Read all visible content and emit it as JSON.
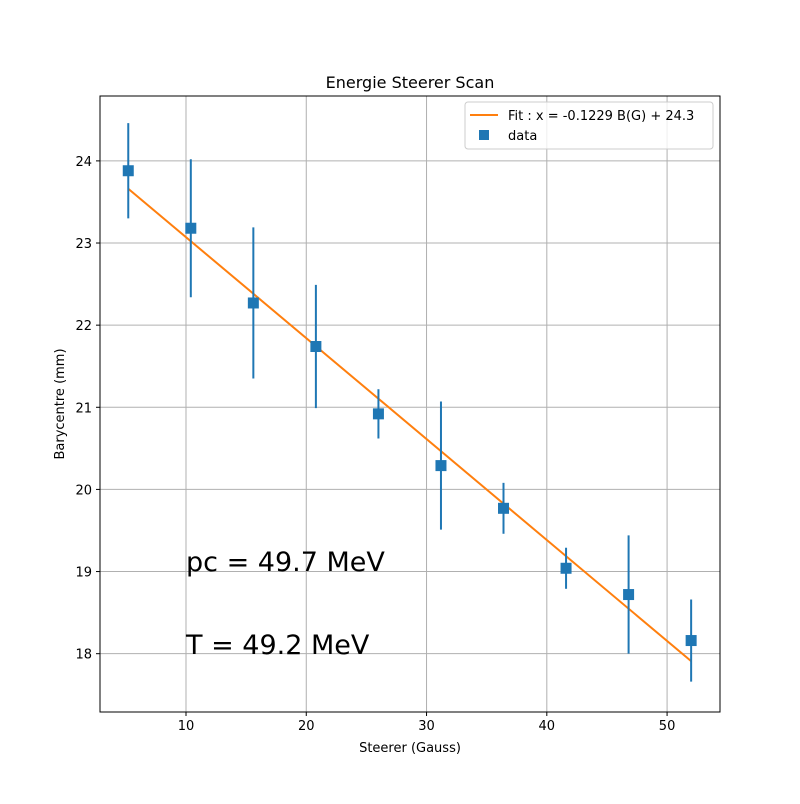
{
  "chart_data": {
    "type": "scatter",
    "title": "Energie Steerer Scan",
    "xlabel": "Steerer (Gauss)",
    "ylabel": "Barycentre (mm)",
    "xlim": [
      2.85,
      54.4
    ],
    "ylim": [
      17.29,
      24.79
    ],
    "xticks": [
      10,
      20,
      30,
      40,
      50
    ],
    "yticks": [
      18,
      19,
      20,
      21,
      22,
      23,
      24
    ],
    "grid": true,
    "legend_position": "top-right",
    "series": [
      {
        "name": "data",
        "kind": "errorbar",
        "marker": "square",
        "color": "#1f77b4",
        "x": [
          5.2,
          10.4,
          15.6,
          20.8,
          26.0,
          31.2,
          36.4,
          41.6,
          46.8,
          52.0
        ],
        "y": [
          23.88,
          23.18,
          22.27,
          21.74,
          20.92,
          20.29,
          19.77,
          19.04,
          18.72,
          18.16
        ],
        "yerr": [
          0.58,
          0.84,
          0.92,
          0.75,
          0.3,
          0.78,
          0.31,
          0.25,
          0.72,
          0.5
        ]
      },
      {
        "name": "Fit : x = -0.1229 B(G) + 24.3",
        "kind": "line",
        "color": "#ff7f0e",
        "slope": -0.1229,
        "intercept": 24.3,
        "x_range": [
          5.2,
          52.0
        ]
      }
    ],
    "annotations": [
      "pc = 49.7 MeV",
      "T = 49.2 MeV"
    ]
  }
}
